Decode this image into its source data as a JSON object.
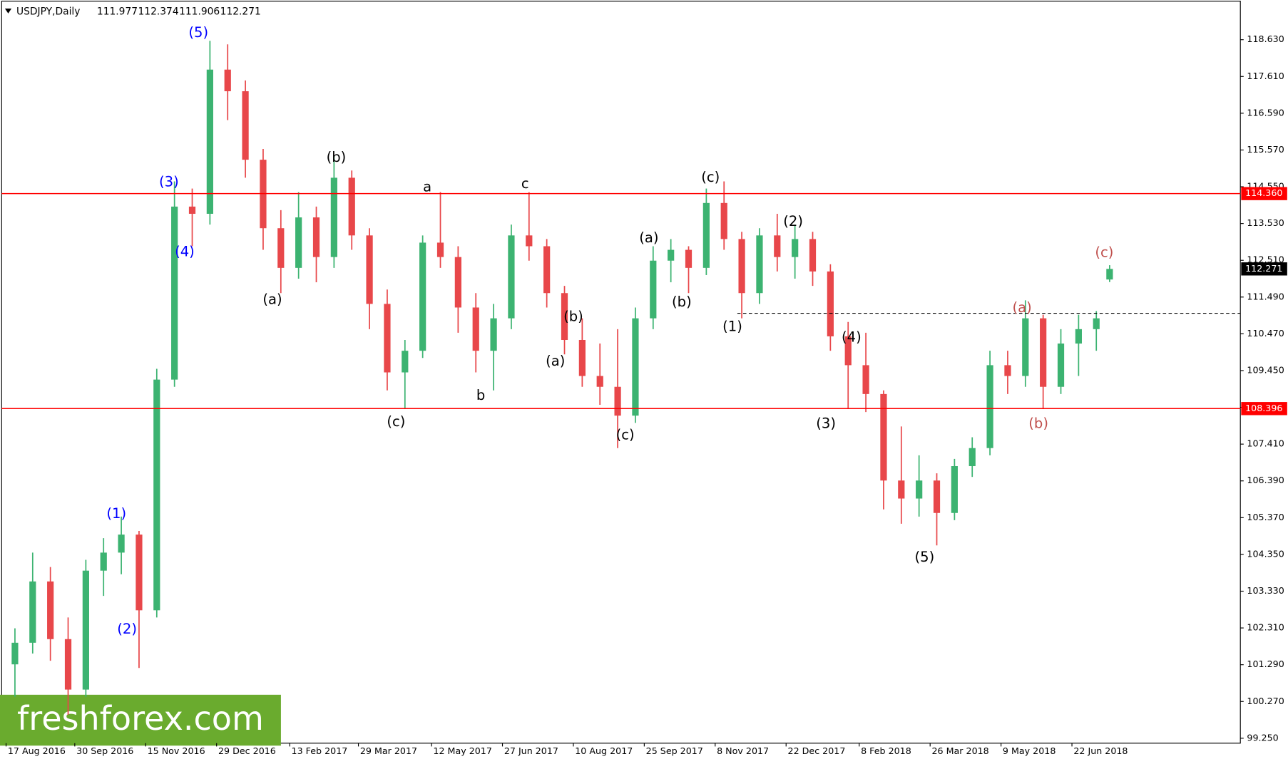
{
  "chart_data": {
    "type": "candlestick",
    "title": "USDJPY,Daily",
    "header_values": [
      111.977,
      112.374,
      111.906,
      112.271
    ],
    "up_color": "#3cb371",
    "down_color": "#e8474a",
    "xlim": [
      -2,
      557
    ],
    "ylim": [
      99.113,
      119.723
    ],
    "xticks": [
      {
        "value": 0,
        "label": "17 Aug 2016"
      },
      {
        "value": 31,
        "label": "30 Sep 2016"
      },
      {
        "value": 63,
        "label": "15 Nov 2016"
      },
      {
        "value": 95,
        "label": "29 Dec 2016"
      },
      {
        "value": 128,
        "label": "13 Feb 2017"
      },
      {
        "value": 159,
        "label": "29 Mar 2017"
      },
      {
        "value": 192,
        "label": "12 May 2017"
      },
      {
        "value": 224,
        "label": "27 Jun 2017"
      },
      {
        "value": 256,
        "label": "10 Aug 2017"
      },
      {
        "value": 288,
        "label": "25 Sep 2017"
      },
      {
        "value": 320,
        "label": "8 Nov 2017"
      },
      {
        "value": 352,
        "label": "22 Dec 2017"
      },
      {
        "value": 385,
        "label": "8 Feb 2018"
      },
      {
        "value": 417,
        "label": "26 Mar 2018"
      },
      {
        "value": 449,
        "label": "9 May 2018"
      },
      {
        "value": 481,
        "label": "22 Jun 2018"
      }
    ],
    "yticks": [
      {
        "value": 118.63,
        "label": "118.630"
      },
      {
        "value": 117.61,
        "label": "117.610"
      },
      {
        "value": 116.59,
        "label": "116.590"
      },
      {
        "value": 115.57,
        "label": "115.570"
      },
      {
        "value": 114.55,
        "label": "114.550"
      },
      {
        "value": 113.53,
        "label": "113.530"
      },
      {
        "value": 112.51,
        "label": "112.510"
      },
      {
        "value": 111.49,
        "label": "111.490"
      },
      {
        "value": 110.47,
        "label": "110.470"
      },
      {
        "value": 109.45,
        "label": "109.450"
      },
      {
        "value": 108.43,
        "label": "108.430"
      },
      {
        "value": 107.41,
        "label": "107.410"
      },
      {
        "value": 106.39,
        "label": "106.390"
      },
      {
        "value": 105.37,
        "label": "105.370"
      },
      {
        "value": 104.35,
        "label": "104.350"
      },
      {
        "value": 103.33,
        "label": "103.330"
      },
      {
        "value": 102.31,
        "label": "102.310"
      },
      {
        "value": 101.29,
        "label": "101.290"
      },
      {
        "value": 100.27,
        "label": "100.270"
      },
      {
        "value": 99.25,
        "label": "99.250"
      }
    ],
    "levels": [
      {
        "value": 114.36,
        "label": "114.360",
        "color": "#ff0000"
      },
      {
        "value": 108.396,
        "label": "108.396",
        "color": "#ff0000"
      }
    ],
    "current_price": {
      "value": 112.271,
      "label": "112.271"
    },
    "dashed_level": {
      "y": 111.04,
      "x_start": 330
    },
    "candles": {
      "x": [
        4,
        12,
        20,
        28,
        36,
        44,
        52,
        60,
        68,
        76,
        84,
        92,
        100,
        108,
        116,
        124,
        132,
        140,
        148,
        156,
        164,
        172,
        180,
        188,
        196,
        204,
        212,
        220,
        228,
        236,
        244,
        252,
        260,
        268,
        276,
        284,
        292,
        300,
        308,
        316,
        324,
        332,
        340,
        348,
        356,
        364,
        372,
        380,
        388,
        396,
        404,
        412,
        420,
        428,
        436,
        444,
        452,
        460,
        468,
        476,
        484,
        492,
        498
      ],
      "open": [
        101.3,
        101.9,
        103.6,
        102.0,
        100.6,
        103.9,
        104.4,
        104.9,
        102.8,
        109.2,
        114.0,
        113.8,
        117.8,
        117.2,
        115.3,
        113.4,
        112.3,
        113.7,
        112.6,
        114.8,
        113.2,
        111.3,
        109.4,
        110.0,
        113.0,
        112.6,
        111.2,
        110.0,
        110.9,
        113.2,
        112.9,
        111.6,
        110.3,
        109.3,
        109.0,
        108.2,
        110.9,
        112.5,
        112.8,
        112.3,
        114.1,
        113.1,
        111.6,
        113.2,
        112.6,
        113.1,
        112.2,
        110.4,
        109.6,
        108.8,
        106.4,
        105.9,
        106.4,
        105.5,
        106.8,
        107.3,
        109.6,
        109.3,
        110.9,
        109.0,
        110.2,
        110.6,
        111.977
      ],
      "high": [
        102.3,
        104.4,
        104.0,
        102.6,
        104.2,
        104.8,
        105.4,
        105.0,
        109.5,
        114.7,
        114.5,
        118.6,
        118.5,
        117.5,
        115.6,
        113.9,
        114.4,
        114.0,
        115.4,
        115.0,
        113.4,
        111.7,
        110.3,
        113.2,
        114.4,
        112.9,
        111.6,
        111.3,
        113.5,
        114.4,
        113.1,
        111.8,
        110.9,
        110.2,
        110.6,
        111.2,
        112.9,
        113.1,
        112.9,
        114.5,
        114.7,
        113.3,
        113.4,
        113.8,
        113.5,
        113.3,
        112.4,
        110.8,
        110.5,
        108.9,
        107.9,
        107.1,
        106.6,
        107.0,
        107.6,
        110.0,
        110.0,
        111.4,
        111.0,
        110.6,
        111.0,
        111.1,
        112.374
      ],
      "low": [
        100.4,
        101.6,
        101.4,
        99.9,
        100.4,
        103.2,
        103.8,
        101.2,
        102.6,
        109.0,
        112.9,
        113.5,
        116.4,
        114.8,
        112.8,
        111.6,
        112.0,
        111.9,
        112.3,
        112.8,
        110.6,
        108.9,
        108.4,
        109.8,
        112.3,
        110.5,
        109.4,
        108.9,
        110.6,
        112.5,
        111.2,
        109.9,
        109.0,
        108.5,
        107.3,
        108.0,
        110.6,
        111.9,
        111.6,
        112.1,
        112.8,
        110.9,
        111.3,
        112.2,
        112.0,
        111.8,
        110.0,
        108.4,
        108.3,
        105.6,
        105.2,
        105.4,
        104.6,
        105.3,
        106.5,
        107.1,
        108.8,
        109.0,
        108.4,
        108.8,
        109.3,
        110.0,
        111.906
      ],
      "close": [
        101.9,
        103.6,
        102.0,
        100.6,
        103.9,
        104.4,
        104.9,
        102.8,
        109.2,
        114.0,
        113.8,
        117.8,
        117.2,
        115.3,
        113.4,
        112.3,
        113.7,
        112.6,
        114.8,
        113.2,
        111.3,
        109.4,
        110.0,
        113.0,
        112.6,
        111.2,
        110.0,
        110.9,
        113.2,
        112.9,
        111.6,
        110.3,
        109.3,
        109.0,
        108.2,
        110.9,
        112.5,
        112.8,
        112.3,
        114.1,
        113.1,
        111.6,
        113.2,
        112.6,
        113.1,
        112.2,
        110.4,
        109.6,
        108.8,
        106.4,
        105.9,
        106.4,
        105.5,
        106.8,
        107.3,
        109.6,
        109.3,
        110.9,
        109.0,
        110.2,
        110.6,
        110.9,
        112.271
      ]
    },
    "annotations": [
      {
        "text": "(5)",
        "x": 86.8,
        "y": 118.81,
        "color": "#0000ff"
      },
      {
        "text": "(3)",
        "x": 73.5,
        "y": 114.67,
        "color": "#0000ff"
      },
      {
        "text": "(4)",
        "x": 80.6,
        "y": 112.73,
        "color": "#0000ff"
      },
      {
        "text": "(1)",
        "x": 49.8,
        "y": 105.47,
        "color": "#0000ff"
      },
      {
        "text": "(2)",
        "x": 54.6,
        "y": 102.26,
        "color": "#0000ff"
      },
      {
        "text": "(a)",
        "x": 120.2,
        "y": 111.41,
        "color": "#000000"
      },
      {
        "text": "(b)",
        "x": 149,
        "y": 115.35,
        "color": "#000000"
      },
      {
        "text": "(c)",
        "x": 176,
        "y": 108.02,
        "color": "#000000"
      },
      {
        "text": "a",
        "x": 190.1,
        "y": 114.53,
        "color": "#000000"
      },
      {
        "text": "b",
        "x": 214.2,
        "y": 108.75,
        "color": "#000000"
      },
      {
        "text": "c",
        "x": 234.2,
        "y": 114.62,
        "color": "#000000"
      },
      {
        "text": "(a)",
        "x": 247.9,
        "y": 109.7,
        "color": "#000000"
      },
      {
        "text": "(b)",
        "x": 256,
        "y": 110.93,
        "color": "#000000"
      },
      {
        "text": "(c)",
        "x": 279.4,
        "y": 107.65,
        "color": "#000000"
      },
      {
        "text": "(a)",
        "x": 290.1,
        "y": 113.12,
        "color": "#000000"
      },
      {
        "text": "(b)",
        "x": 304.9,
        "y": 111.34,
        "color": "#000000"
      },
      {
        "text": "(c)",
        "x": 317.9,
        "y": 114.8,
        "color": "#000000"
      },
      {
        "text": "(1)",
        "x": 327.8,
        "y": 110.66,
        "color": "#000000"
      },
      {
        "text": "(2)",
        "x": 355.2,
        "y": 113.57,
        "color": "#000000"
      },
      {
        "text": "(3)",
        "x": 370,
        "y": 107.97,
        "color": "#000000"
      },
      {
        "text": "(4)",
        "x": 381.5,
        "y": 110.36,
        "color": "#000000"
      },
      {
        "text": "(5)",
        "x": 414.5,
        "y": 104.26,
        "color": "#000000"
      },
      {
        "text": "(a)",
        "x": 458.5,
        "y": 111.18,
        "color": "#c0504d"
      },
      {
        "text": "(b)",
        "x": 465.9,
        "y": 107.97,
        "color": "#c0504d"
      },
      {
        "text": "(c)",
        "x": 495.6,
        "y": 112.71,
        "color": "#c0504d"
      }
    ],
    "watermark": "freshforex.com"
  }
}
